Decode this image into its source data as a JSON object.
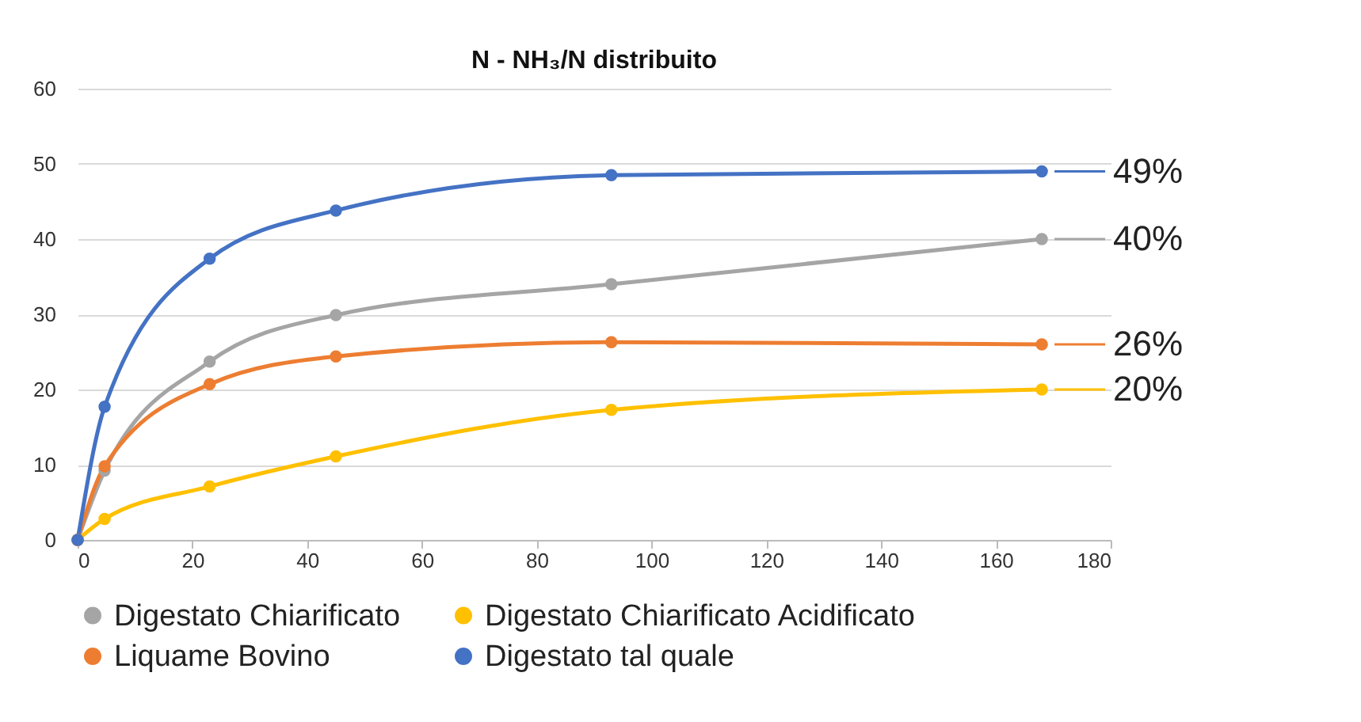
{
  "chart_data": {
    "type": "line",
    "title": "N - NH₃/N distribuito",
    "x": [
      0,
      4.7,
      23,
      45,
      93,
      168
    ],
    "series": [
      {
        "name": "Digestato Chiarificato",
        "color": "#a5a5a5",
        "values": [
          0,
          9.2,
          23.7,
          29.9,
          34,
          40
        ],
        "value_labels": [
          null,
          null,
          null,
          null,
          null,
          "40%"
        ]
      },
      {
        "name": "Digestato Chiarificato Acidificato",
        "color": "#ffc000",
        "values": [
          0,
          2.8,
          7.1,
          11.1,
          17.3,
          20
        ],
        "value_labels": [
          null,
          null,
          null,
          null,
          null,
          "20%"
        ]
      },
      {
        "name": "Liquame Bovino",
        "color": "#ed7d31",
        "values": [
          0,
          9.8,
          20.7,
          24.4,
          26.3,
          26
        ],
        "value_labels": [
          null,
          null,
          null,
          null,
          null,
          "26%"
        ]
      },
      {
        "name": "Digestato tal quale",
        "color": "#4472c4",
        "values": [
          0,
          17.7,
          37.4,
          43.8,
          48.5,
          49
        ],
        "value_labels": [
          null,
          null,
          null,
          null,
          null,
          "49%"
        ]
      }
    ],
    "xlim": [
      0,
      180
    ],
    "xticks": [
      0,
      20,
      40,
      60,
      80,
      100,
      120,
      140,
      160,
      180
    ],
    "ylim": [
      0,
      60
    ],
    "yticks": [
      0,
      10,
      20,
      30,
      40,
      50,
      60
    ],
    "grid": "y",
    "legend": "bottom",
    "marker": "circle",
    "line_style": "solid"
  }
}
